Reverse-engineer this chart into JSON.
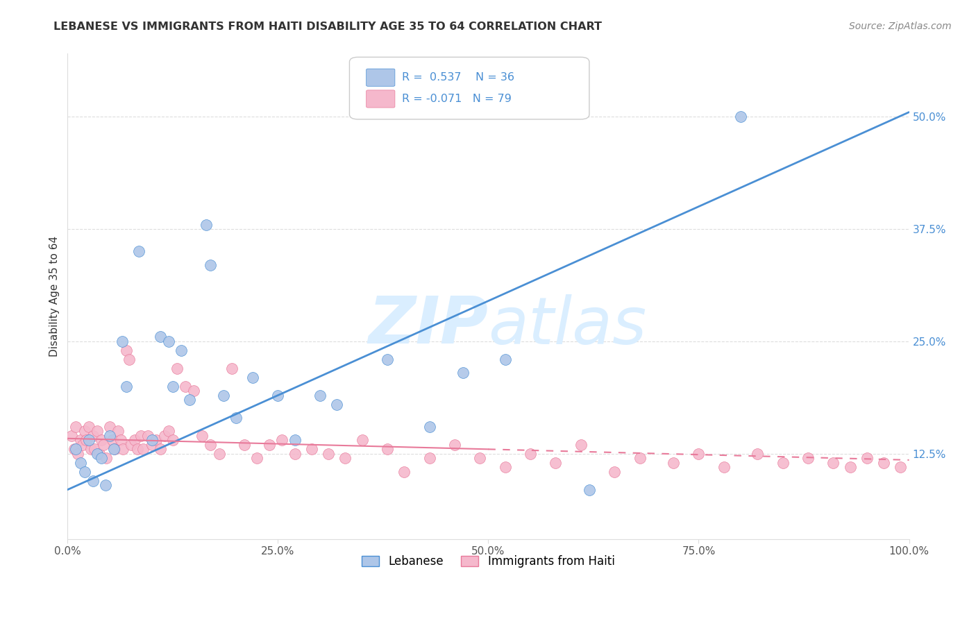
{
  "title": "LEBANESE VS IMMIGRANTS FROM HAITI DISABILITY AGE 35 TO 64 CORRELATION CHART",
  "source": "Source: ZipAtlas.com",
  "ylabel": "Disability Age 35 to 64",
  "legend_labels": [
    "Lebanese",
    "Immigrants from Haiti"
  ],
  "blue_R": "0.537",
  "blue_N": "36",
  "pink_R": "-0.071",
  "pink_N": "79",
  "blue_color": "#aec6e8",
  "pink_color": "#f5b8cc",
  "blue_line_color": "#4a8fd4",
  "pink_line_color": "#e87a9a",
  "watermark_color": "#daeeff",
  "title_color": "#333333",
  "source_color": "#888888",
  "ytick_color": "#4a8fd4",
  "xtick_color": "#555555",
  "grid_color": "#dddddd",
  "blue_scatter_x": [
    1.0,
    1.5,
    2.0,
    2.5,
    3.0,
    3.5,
    4.0,
    4.5,
    5.0,
    5.5,
    6.5,
    7.0,
    8.5,
    10.0,
    11.0,
    12.0,
    12.5,
    13.5,
    14.5,
    16.5,
    17.0,
    18.5,
    20.0,
    22.0,
    25.0,
    27.0,
    30.0,
    32.0,
    38.0,
    43.0,
    47.0,
    52.0,
    62.0,
    80.0
  ],
  "blue_scatter_y": [
    13.0,
    11.5,
    10.5,
    14.0,
    9.5,
    12.5,
    12.0,
    9.0,
    14.5,
    13.0,
    25.0,
    20.0,
    35.0,
    14.0,
    25.5,
    25.0,
    20.0,
    24.0,
    18.5,
    38.0,
    33.5,
    19.0,
    16.5,
    21.0,
    19.0,
    14.0,
    19.0,
    18.0,
    23.0,
    15.5,
    21.5,
    23.0,
    8.5,
    50.0
  ],
  "pink_scatter_x": [
    0.5,
    0.8,
    1.0,
    1.2,
    1.5,
    1.8,
    2.0,
    2.2,
    2.5,
    2.8,
    3.0,
    3.2,
    3.5,
    3.8,
    4.0,
    4.3,
    4.6,
    5.0,
    5.3,
    5.6,
    6.0,
    6.3,
    6.6,
    7.0,
    7.3,
    7.6,
    8.0,
    8.3,
    8.7,
    9.0,
    9.5,
    10.0,
    10.5,
    11.0,
    11.5,
    12.0,
    12.5,
    13.0,
    14.0,
    15.0,
    16.0,
    17.0,
    18.0,
    19.5,
    21.0,
    22.5,
    24.0,
    25.5,
    27.0,
    29.0,
    31.0,
    33.0,
    35.0,
    38.0,
    40.0,
    43.0,
    46.0,
    49.0,
    52.0,
    55.0,
    58.0,
    61.0,
    65.0,
    68.0,
    72.0,
    75.0,
    78.0,
    82.0,
    85.0,
    88.0,
    91.0,
    93.0,
    95.0,
    97.0,
    99.0
  ],
  "pink_scatter_y": [
    14.5,
    13.0,
    15.5,
    12.5,
    14.0,
    13.5,
    15.0,
    14.0,
    15.5,
    13.0,
    14.5,
    13.0,
    15.0,
    12.5,
    14.0,
    13.5,
    12.0,
    15.5,
    14.0,
    13.0,
    15.0,
    14.0,
    13.0,
    24.0,
    23.0,
    13.5,
    14.0,
    13.0,
    14.5,
    13.0,
    14.5,
    13.5,
    14.0,
    13.0,
    14.5,
    15.0,
    14.0,
    22.0,
    20.0,
    19.5,
    14.5,
    13.5,
    12.5,
    22.0,
    13.5,
    12.0,
    13.5,
    14.0,
    12.5,
    13.0,
    12.5,
    12.0,
    14.0,
    13.0,
    10.5,
    12.0,
    13.5,
    12.0,
    11.0,
    12.5,
    11.5,
    13.5,
    10.5,
    12.0,
    11.5,
    12.5,
    11.0,
    12.5,
    11.5,
    12.0,
    11.5,
    11.0,
    12.0,
    11.5,
    11.0
  ],
  "blue_line_x0": 0,
  "blue_line_x1": 100,
  "blue_line_y0": 8.5,
  "blue_line_y1": 50.5,
  "pink_line_x0": 0,
  "pink_line_x1": 100,
  "pink_line_y0": 14.2,
  "pink_line_y1": 11.8,
  "pink_solid_end_x": 50,
  "pink_solid_end_y": 13.0,
  "xlim": [
    0,
    100
  ],
  "ylim": [
    3,
    57
  ],
  "ytick_vals": [
    12.5,
    25.0,
    37.5,
    50.0
  ],
  "xtick_vals": [
    0,
    25,
    50,
    75,
    100
  ],
  "xtick_labels": [
    "0.0%",
    "25.0%",
    "50.0%",
    "75.0%",
    "100.0%"
  ],
  "ytick_labels": [
    "12.5%",
    "25.0%",
    "37.5%",
    "50.0%"
  ]
}
